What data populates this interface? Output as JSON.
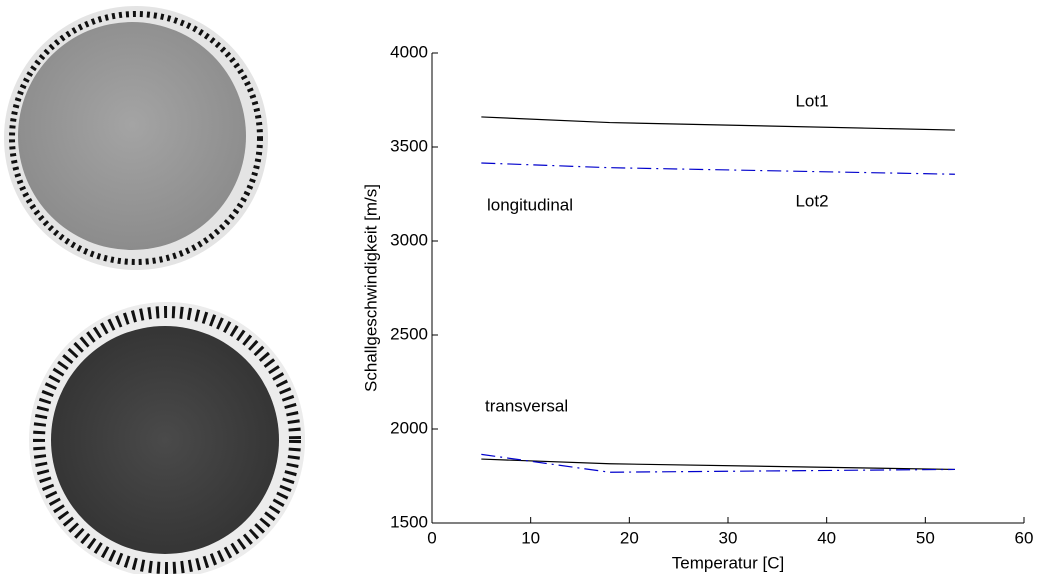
{
  "chart_data": {
    "type": "line",
    "xlabel": "Temperatur [C]",
    "ylabel": "Schallgeschwindigkeit [m/s]",
    "annotations": [
      "Lot1",
      "Lot2",
      "longitudinal",
      "transversal"
    ],
    "x": [
      5,
      18,
      53
    ],
    "series": [
      {
        "color": "#000000",
        "style": "solid",
        "values": [
          3660,
          3630,
          3590
        ]
      },
      {
        "color": "#0000cc",
        "style": "dashdot",
        "values": [
          3415,
          3390,
          3355
        ]
      },
      {
        "color": "#000000",
        "style": "solid",
        "values": [
          1840,
          1815,
          1785
        ]
      },
      {
        "color": "#0000cc",
        "style": "dashdot",
        "values": [
          1865,
          1770,
          1785
        ]
      }
    ],
    "xlim": [
      0,
      60
    ],
    "xticks": [
      0,
      10,
      20,
      30,
      40,
      50,
      60
    ],
    "ylim": [
      1500,
      4000
    ],
    "yticks": [
      1500,
      2000,
      2500,
      3000,
      3500,
      4000
    ],
    "grid": false
  }
}
